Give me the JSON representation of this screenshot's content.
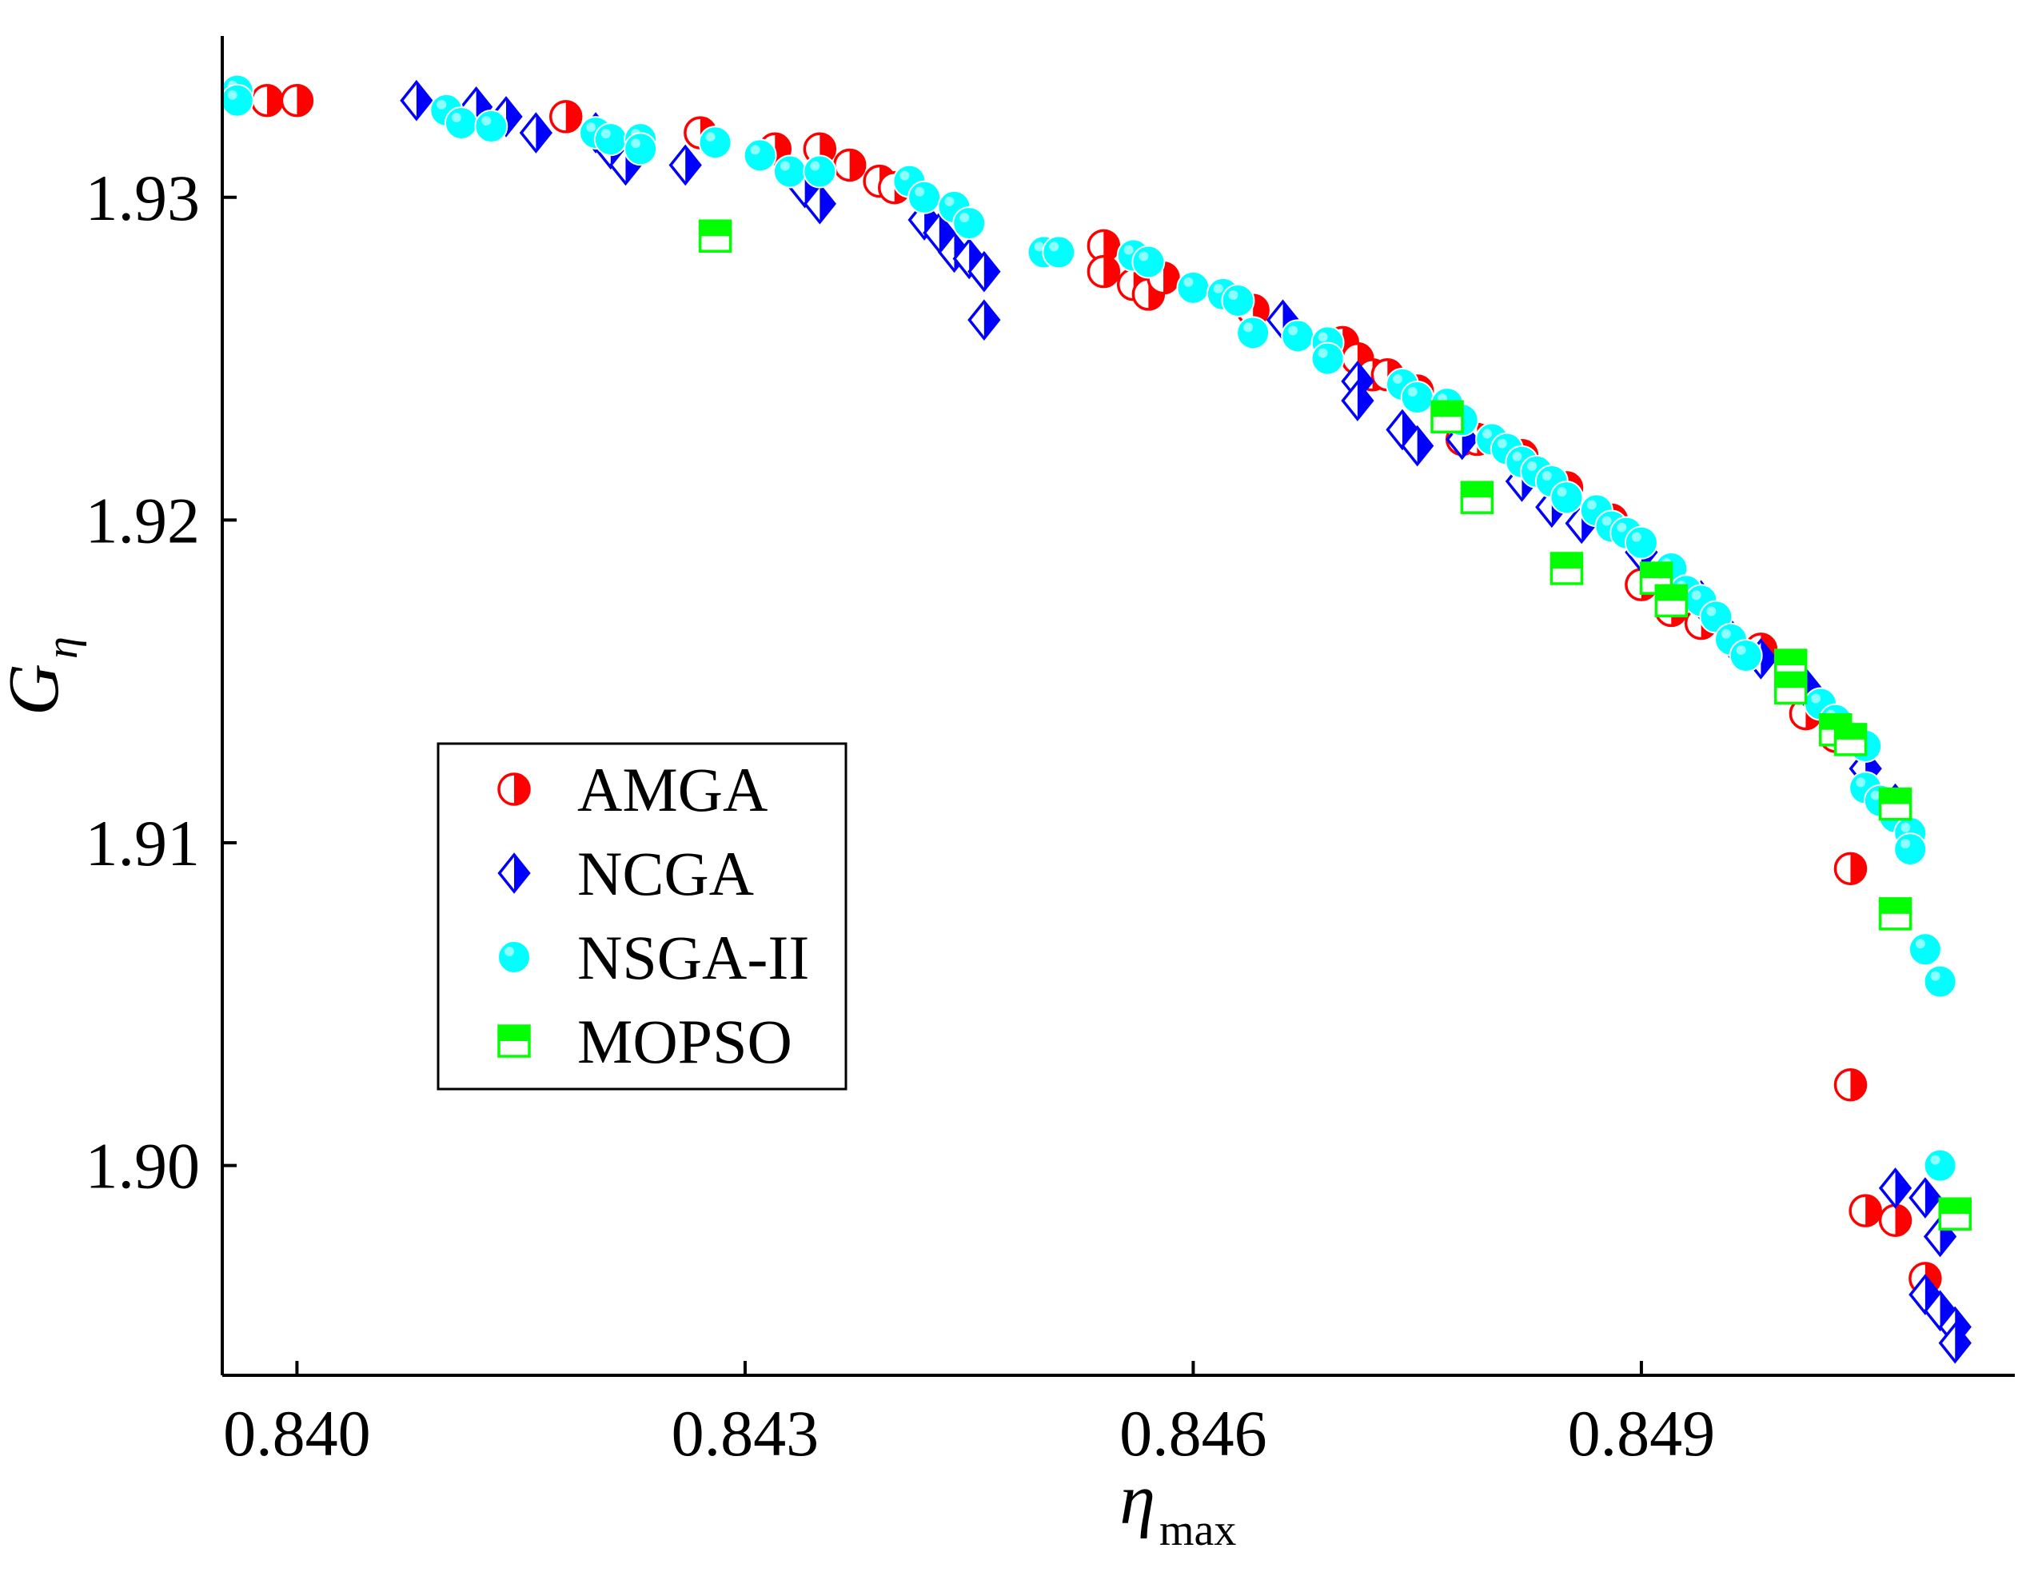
{
  "chart_data": {
    "type": "scatter",
    "title": "",
    "xlabel": "η",
    "xlabel_sub": "max",
    "ylabel": "G",
    "ylabel_sub": "η",
    "xlim": [
      0.8395,
      0.8515
    ],
    "ylim": [
      1.8935,
      1.935
    ],
    "xticks": [
      0.84,
      0.843,
      0.846,
      0.849
    ],
    "xtick_labels": [
      "0.840",
      "0.843",
      "0.846",
      "0.849"
    ],
    "yticks": [
      1.9,
      1.91,
      1.92,
      1.93
    ],
    "ytick_labels": [
      "1.90",
      "1.91",
      "1.92",
      "1.93"
    ],
    "grid": false,
    "legend_position": "center-left",
    "series": [
      {
        "name": "AMGA",
        "marker": "half-circle",
        "color": "#ff0000",
        "points": [
          [
            0.8398,
            1.933
          ],
          [
            0.84,
            1.933
          ],
          [
            0.8418,
            1.9325
          ],
          [
            0.8427,
            1.932
          ],
          [
            0.8432,
            1.9315
          ],
          [
            0.8435,
            1.9315
          ],
          [
            0.8437,
            1.931
          ],
          [
            0.8439,
            1.9305
          ],
          [
            0.844,
            1.9303
          ],
          [
            0.8454,
            1.9285
          ],
          [
            0.8454,
            1.9277
          ],
          [
            0.8456,
            1.9273
          ],
          [
            0.8457,
            1.927
          ],
          [
            0.8458,
            1.9275
          ],
          [
            0.8463,
            1.9268
          ],
          [
            0.8464,
            1.9265
          ],
          [
            0.847,
            1.9255
          ],
          [
            0.8471,
            1.925
          ],
          [
            0.8472,
            1.9245
          ],
          [
            0.8473,
            1.9245
          ],
          [
            0.8475,
            1.924
          ],
          [
            0.8478,
            1.9225
          ],
          [
            0.8479,
            1.9225
          ],
          [
            0.8482,
            1.922
          ],
          [
            0.8485,
            1.921
          ],
          [
            0.8488,
            1.92
          ],
          [
            0.849,
            1.918
          ],
          [
            0.8492,
            1.9172
          ],
          [
            0.8494,
            1.9168
          ],
          [
            0.8496,
            1.9163
          ],
          [
            0.8498,
            1.916
          ],
          [
            0.85,
            1.915
          ],
          [
            0.8501,
            1.914
          ],
          [
            0.8503,
            1.9133
          ],
          [
            0.8504,
            1.9092
          ],
          [
            0.8504,
            1.9025
          ],
          [
            0.8505,
            1.8986
          ],
          [
            0.8507,
            1.8983
          ],
          [
            0.8509,
            1.8965
          ]
        ]
      },
      {
        "name": "NCGA",
        "marker": "half-diamond",
        "color": "#0000ff",
        "points": [
          [
            0.8408,
            1.933
          ],
          [
            0.8412,
            1.9328
          ],
          [
            0.8414,
            1.9325
          ],
          [
            0.8416,
            1.932
          ],
          [
            0.842,
            1.932
          ],
          [
            0.8421,
            1.9315
          ],
          [
            0.8422,
            1.931
          ],
          [
            0.8426,
            1.931
          ],
          [
            0.8434,
            1.9303
          ],
          [
            0.8435,
            1.9298
          ],
          [
            0.8442,
            1.9293
          ],
          [
            0.8443,
            1.9289
          ],
          [
            0.8444,
            1.9283
          ],
          [
            0.8445,
            1.9281
          ],
          [
            0.8446,
            1.9277
          ],
          [
            0.8446,
            1.9262
          ],
          [
            0.8466,
            1.9262
          ],
          [
            0.8471,
            1.9243
          ],
          [
            0.8471,
            1.9237
          ],
          [
            0.8474,
            1.9228
          ],
          [
            0.8475,
            1.9223
          ],
          [
            0.8478,
            1.9225
          ],
          [
            0.8482,
            1.9212
          ],
          [
            0.8484,
            1.9204
          ],
          [
            0.8486,
            1.9199
          ],
          [
            0.849,
            1.919
          ],
          [
            0.8494,
            1.9175
          ],
          [
            0.8496,
            1.9163
          ],
          [
            0.8498,
            1.9157
          ],
          [
            0.8501,
            1.9148
          ],
          [
            0.8503,
            1.9137
          ],
          [
            0.8505,
            1.9123
          ],
          [
            0.8507,
            1.9112
          ],
          [
            0.8507,
            1.8993
          ],
          [
            0.8509,
            1.899
          ],
          [
            0.851,
            1.8978
          ],
          [
            0.8509,
            1.896
          ],
          [
            0.851,
            1.8955
          ],
          [
            0.8511,
            1.895
          ],
          [
            0.8511,
            1.8945
          ]
        ]
      },
      {
        "name": "NSGA-II",
        "marker": "circle",
        "color": "#00ffff",
        "points": [
          [
            0.8396,
            1.9333
          ],
          [
            0.8396,
            1.933
          ],
          [
            0.841,
            1.9327
          ],
          [
            0.8411,
            1.9323
          ],
          [
            0.8413,
            1.9322
          ],
          [
            0.842,
            1.932
          ],
          [
            0.8421,
            1.9318
          ],
          [
            0.8423,
            1.9318
          ],
          [
            0.8423,
            1.9315
          ],
          [
            0.8428,
            1.9317
          ],
          [
            0.8431,
            1.9313
          ],
          [
            0.8433,
            1.9308
          ],
          [
            0.8435,
            1.9308
          ],
          [
            0.8441,
            1.9305
          ],
          [
            0.8442,
            1.93
          ],
          [
            0.8444,
            1.9297
          ],
          [
            0.8445,
            1.9292
          ],
          [
            0.845,
            1.9283
          ],
          [
            0.8451,
            1.9283
          ],
          [
            0.8456,
            1.9282
          ],
          [
            0.8457,
            1.928
          ],
          [
            0.846,
            1.9272
          ],
          [
            0.8462,
            1.927
          ],
          [
            0.8463,
            1.9268
          ],
          [
            0.8464,
            1.9258
          ],
          [
            0.8467,
            1.9257
          ],
          [
            0.8469,
            1.9255
          ],
          [
            0.8469,
            1.925
          ],
          [
            0.8474,
            1.9242
          ],
          [
            0.8475,
            1.9238
          ],
          [
            0.8477,
            1.9236
          ],
          [
            0.8478,
            1.9231
          ],
          [
            0.848,
            1.9225
          ],
          [
            0.8481,
            1.9222
          ],
          [
            0.8482,
            1.9218
          ],
          [
            0.8483,
            1.9215
          ],
          [
            0.8484,
            1.9212
          ],
          [
            0.8485,
            1.9207
          ],
          [
            0.8487,
            1.9203
          ],
          [
            0.8488,
            1.9198
          ],
          [
            0.8489,
            1.9196
          ],
          [
            0.849,
            1.9193
          ],
          [
            0.8492,
            1.9185
          ],
          [
            0.8493,
            1.9178
          ],
          [
            0.8494,
            1.9175
          ],
          [
            0.8495,
            1.917
          ],
          [
            0.8496,
            1.9163
          ],
          [
            0.8497,
            1.9158
          ],
          [
            0.85,
            1.9155
          ],
          [
            0.8502,
            1.9143
          ],
          [
            0.8503,
            1.9138
          ],
          [
            0.8505,
            1.913
          ],
          [
            0.8505,
            1.9117
          ],
          [
            0.8506,
            1.9113
          ],
          [
            0.8507,
            1.9108
          ],
          [
            0.8508,
            1.9103
          ],
          [
            0.8508,
            1.9098
          ],
          [
            0.8509,
            1.9067
          ],
          [
            0.851,
            1.9057
          ],
          [
            0.851,
            1.9
          ]
        ]
      },
      {
        "name": "MOPSO",
        "marker": "half-square",
        "color": "#00ff00",
        "points": [
          [
            0.8428,
            1.9288
          ],
          [
            0.8477,
            1.9232
          ],
          [
            0.8479,
            1.9207
          ],
          [
            0.8485,
            1.9185
          ],
          [
            0.8491,
            1.9182
          ],
          [
            0.8492,
            1.9175
          ],
          [
            0.85,
            1.9155
          ],
          [
            0.85,
            1.9148
          ],
          [
            0.8503,
            1.9135
          ],
          [
            0.8504,
            1.9132
          ],
          [
            0.8507,
            1.9112
          ],
          [
            0.8507,
            1.9078
          ],
          [
            0.8511,
            1.8985
          ]
        ]
      }
    ]
  }
}
